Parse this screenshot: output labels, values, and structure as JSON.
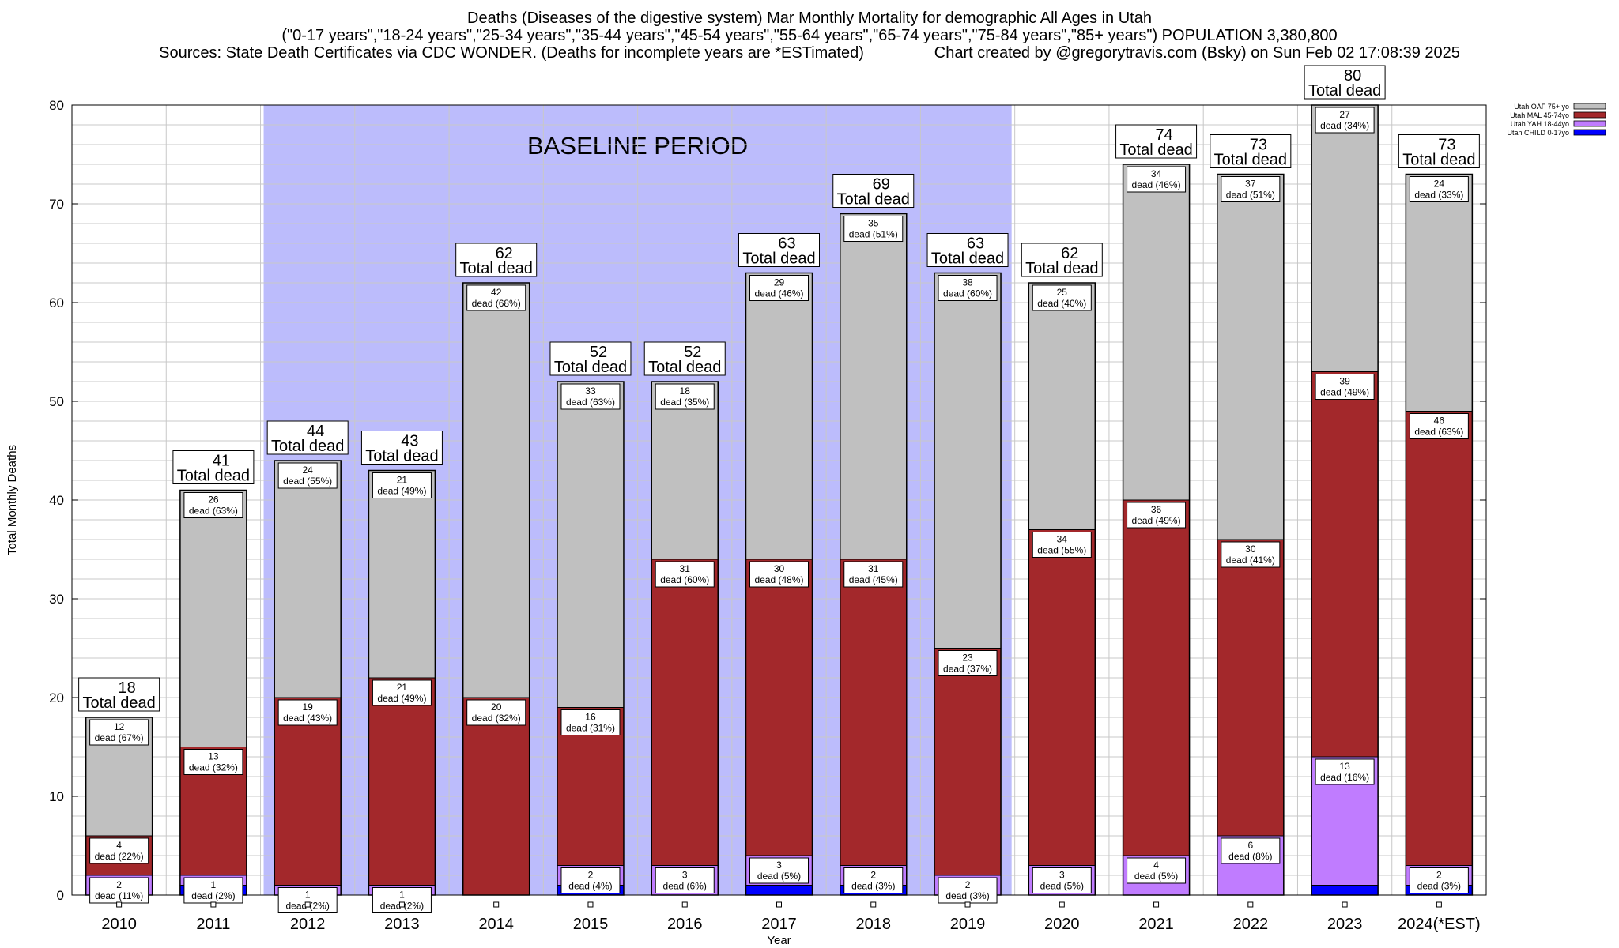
{
  "header": {
    "title_line1": "Deaths (Diseases of the digestive system) Mar Monthly Mortality for demographic All Ages in Utah",
    "title_line2": "(\"0-17 years\",\"18-24 years\",\"25-34 years\",\"35-44 years\",\"45-54 years\",\"55-64 years\",\"65-74 years\",\"75-84 years\",\"85+ years\") POPULATION 3,380,800",
    "title_line3": "Sources: State Death Certificates via CDC WONDER. (Deaths for incomplete years are *ESTimated)                Chart created by @gregorytravis.com (Bsky) on Sun Feb 02 17:08:39 2025"
  },
  "chart_data": {
    "type": "bar",
    "stacked": true,
    "xlabel": "Year",
    "ylabel": "Total Monthly Deaths",
    "ylim": [
      0,
      80
    ],
    "yticks": [
      0,
      10,
      20,
      30,
      40,
      50,
      60,
      70,
      80
    ],
    "grid": true,
    "legend_position": "top-right",
    "baseline_label": "BASELINE PERIOD",
    "baseline_range": [
      "2012",
      "2019"
    ],
    "baseline_color": "#bcbcfc",
    "total_label_suffix": "Total dead",
    "segment_label_word": "dead",
    "categories": [
      "2010",
      "2011",
      "2012",
      "2013",
      "2014",
      "2015",
      "2016",
      "2017",
      "2018",
      "2019",
      "2020",
      "2021",
      "2022",
      "2023",
      "2024(*EST)"
    ],
    "totals": [
      18,
      41,
      44,
      43,
      62,
      52,
      52,
      63,
      69,
      63,
      62,
      74,
      73,
      80,
      73
    ],
    "series": [
      {
        "name": "Utah CHILD 0-17yo",
        "color": "#0000ff",
        "values": [
          0,
          1,
          0,
          0,
          0,
          1,
          0,
          1,
          1,
          0,
          0,
          0,
          0,
          1,
          1
        ],
        "pct": [
          null,
          null,
          null,
          null,
          null,
          null,
          null,
          null,
          null,
          null,
          null,
          null,
          null,
          null,
          null
        ]
      },
      {
        "name": "Utah YAH 18-44yo",
        "color": "#c07cff",
        "values": [
          2,
          1,
          1,
          1,
          0,
          2,
          3,
          3,
          2,
          2,
          3,
          4,
          6,
          13,
          2
        ],
        "pct": [
          "11%",
          "2%",
          "2%",
          "2%",
          null,
          "4%",
          "6%",
          "5%",
          "3%",
          "3%",
          "5%",
          "5%",
          "8%",
          "16%",
          "3%"
        ]
      },
      {
        "name": "Utah MAL 45-74yo",
        "color": "#a3282b",
        "values": [
          4,
          13,
          19,
          21,
          20,
          16,
          31,
          30,
          31,
          23,
          34,
          36,
          30,
          39,
          46
        ],
        "pct": [
          "22%",
          "32%",
          "43%",
          "49%",
          "32%",
          "31%",
          "60%",
          "48%",
          "45%",
          "37%",
          "55%",
          "49%",
          "41%",
          "49%",
          "63%"
        ]
      },
      {
        "name": "Utah OAF 75+ yo",
        "color": "#c0c0c0",
        "values": [
          12,
          26,
          24,
          21,
          42,
          33,
          18,
          29,
          35,
          38,
          25,
          34,
          37,
          27,
          24
        ],
        "pct": [
          "67%",
          "63%",
          "55%",
          "49%",
          "68%",
          "63%",
          "35%",
          "46%",
          "51%",
          "60%",
          "40%",
          "46%",
          "51%",
          "34%",
          "33%"
        ]
      }
    ]
  }
}
